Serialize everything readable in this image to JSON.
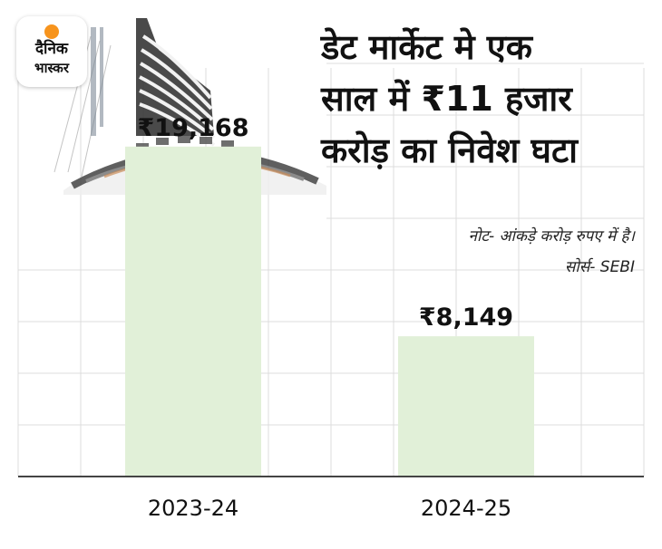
{
  "brand": {
    "line1": "दैनिक",
    "line2": "भास्कर",
    "dot_color": "#f7941d"
  },
  "title_lines": [
    "डेट मार्केट मे एक",
    "साल में ₹11 हजार",
    "करोड़ का निवेश घटा"
  ],
  "note": "नोट- आंकड़े करोड़ रुपए में है।",
  "source": "सोर्स- SEBI",
  "colors": {
    "bar": "#e1f0d8",
    "grid": "#dcdcdc",
    "axis": "#444444"
  },
  "chart_data": {
    "type": "bar",
    "categories": [
      "2023-24",
      "2024-25"
    ],
    "values": [
      19168,
      8149
    ],
    "value_labels": [
      "₹19,168",
      "₹8,149"
    ],
    "ylim": [
      0,
      24000
    ],
    "grid": true
  }
}
